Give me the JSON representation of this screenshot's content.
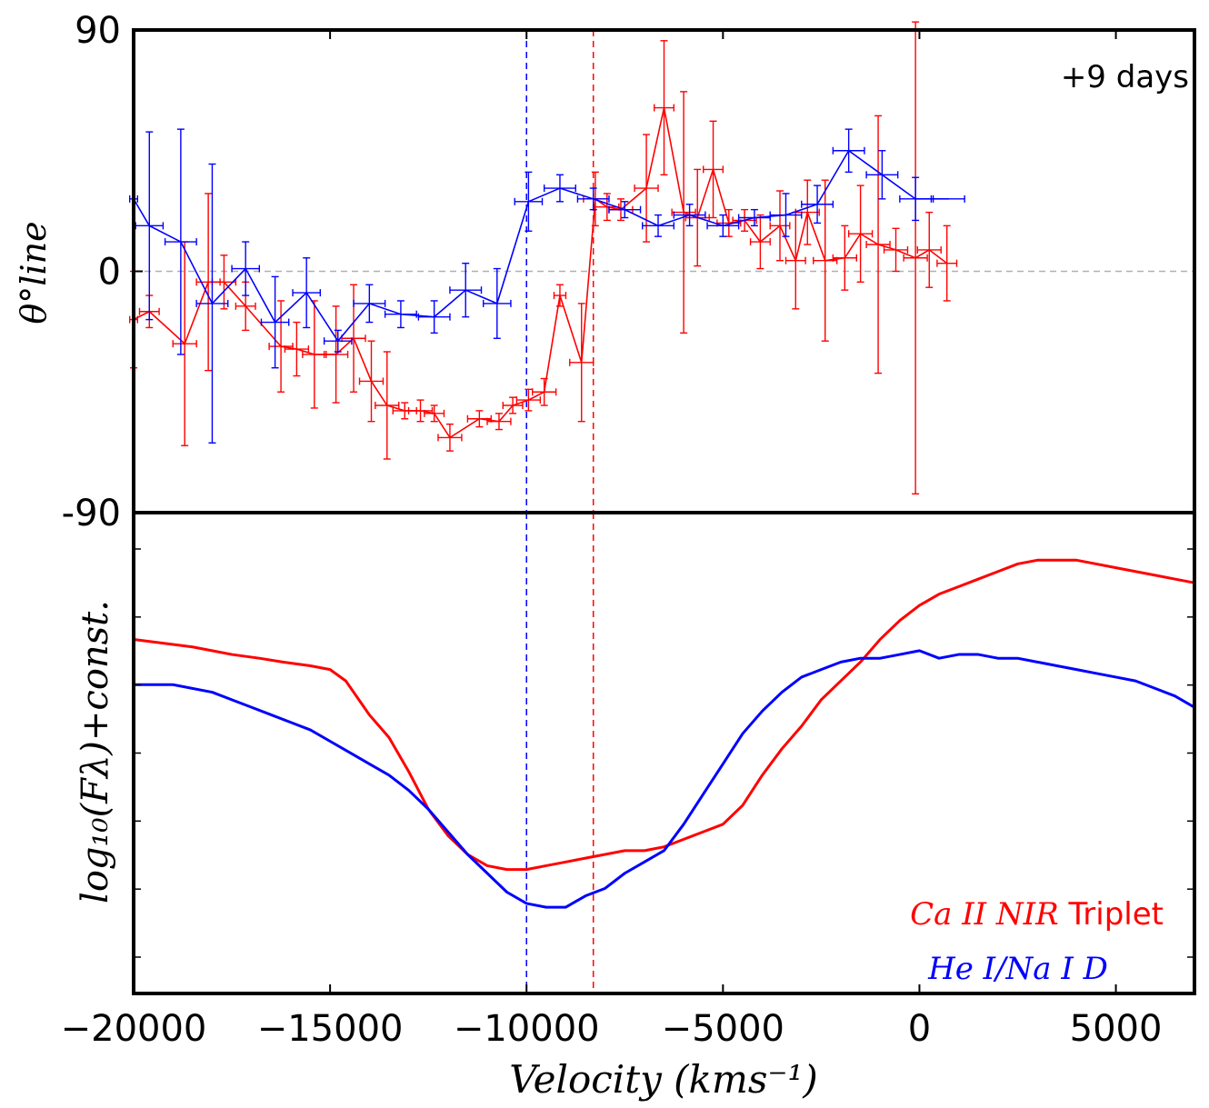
{
  "chart_data": [
    {
      "type": "line",
      "panel": "top",
      "title": "",
      "xlabel": "",
      "ylabel": "θ°line",
      "annotation": "+9 days",
      "xlim": [
        -20000,
        7000
      ],
      "ylim": [
        -90,
        90
      ],
      "yticks": [
        {
          "value": 90,
          "label": "90"
        },
        {
          "value": 0,
          "label": "0"
        },
        {
          "value": -90,
          "label": "-90"
        }
      ],
      "reference_lines": [
        {
          "axis": "y",
          "value": 0,
          "color": "#b0b0b0",
          "style": "dashed"
        },
        {
          "axis": "x",
          "value": -10000,
          "color": "#0000ff",
          "style": "dashed"
        },
        {
          "axis": "x",
          "value": -8300,
          "color": "#ff0000",
          "style": "dashed"
        }
      ],
      "series": [
        {
          "name": "Ca II NIR Triplet",
          "color": "#ff0000",
          "points": [
            {
              "x": -20000,
              "y": -18,
              "xerr": 100,
              "yerr": 18
            },
            {
              "x": -19600,
              "y": -15,
              "xerr": 250,
              "yerr": 6
            },
            {
              "x": -18700,
              "y": -27,
              "xerr": 300,
              "yerr": 38
            },
            {
              "x": -18100,
              "y": -4,
              "xerr": 300,
              "yerr": 33
            },
            {
              "x": -17700,
              "y": -4,
              "xerr": 300,
              "yerr": 10
            },
            {
              "x": -17150,
              "y": -13,
              "xerr": 250,
              "yerr": 9
            },
            {
              "x": -16250,
              "y": -28,
              "xerr": 300,
              "yerr": 17
            },
            {
              "x": -15850,
              "y": -29,
              "xerr": 300,
              "yerr": 10
            },
            {
              "x": -15400,
              "y": -31,
              "xerr": 300,
              "yerr": 20
            },
            {
              "x": -14850,
              "y": -31,
              "xerr": 300,
              "yerr": 18
            },
            {
              "x": -14400,
              "y": -25,
              "xerr": 300,
              "yerr": 20
            },
            {
              "x": -13950,
              "y": -41,
              "xerr": 300,
              "yerr": 15
            },
            {
              "x": -13550,
              "y": -50,
              "xerr": 300,
              "yerr": 20
            },
            {
              "x": -13100,
              "y": -52,
              "xerr": 300,
              "yerr": 3
            },
            {
              "x": -12700,
              "y": -52,
              "xerr": 300,
              "yerr": 4
            },
            {
              "x": -12350,
              "y": -53,
              "xerr": 250,
              "yerr": 3
            },
            {
              "x": -11950,
              "y": -62,
              "xerr": 300,
              "yerr": 5
            },
            {
              "x": -11200,
              "y": -55,
              "xerr": 300,
              "yerr": 3
            },
            {
              "x": -10700,
              "y": -56,
              "xerr": 300,
              "yerr": 3
            },
            {
              "x": -10350,
              "y": -50,
              "xerr": 250,
              "yerr": 3
            },
            {
              "x": -9950,
              "y": -48,
              "xerr": 300,
              "yerr": 4
            },
            {
              "x": -9550,
              "y": -45,
              "xerr": 300,
              "yerr": 5
            },
            {
              "x": -9150,
              "y": -9,
              "xerr": 150,
              "yerr": 4
            },
            {
              "x": -8600,
              "y": -34,
              "xerr": 300,
              "yerr": 22
            },
            {
              "x": -8250,
              "y": 27,
              "xerr": 300,
              "yerr": 10
            },
            {
              "x": -7950,
              "y": 24,
              "xerr": 300,
              "yerr": 5
            },
            {
              "x": -7600,
              "y": 23,
              "xerr": 300,
              "yerr": 4
            },
            {
              "x": -6950,
              "y": 31,
              "xerr": 300,
              "yerr": 20
            },
            {
              "x": -6500,
              "y": 61,
              "xerr": 250,
              "yerr": 25
            },
            {
              "x": -6000,
              "y": 22,
              "xerr": 300,
              "yerr": 45
            },
            {
              "x": -5650,
              "y": 20,
              "xerr": 300,
              "yerr": 18
            },
            {
              "x": -5250,
              "y": 38,
              "xerr": 250,
              "yerr": 18
            },
            {
              "x": -4850,
              "y": 18,
              "xerr": 300,
              "yerr": 5
            },
            {
              "x": -4450,
              "y": 19,
              "xerr": 300,
              "yerr": 4
            },
            {
              "x": -4050,
              "y": 11,
              "xerr": 250,
              "yerr": 10
            },
            {
              "x": -3550,
              "y": 17,
              "xerr": 250,
              "yerr": 13
            },
            {
              "x": -3150,
              "y": 4,
              "xerr": 250,
              "yerr": 18
            },
            {
              "x": -2850,
              "y": 22,
              "xerr": 300,
              "yerr": 12
            },
            {
              "x": -2400,
              "y": 4,
              "xerr": 300,
              "yerr": 30
            },
            {
              "x": -1900,
              "y": 5,
              "xerr": 300,
              "yerr": 12
            },
            {
              "x": -1500,
              "y": 14,
              "xerr": 300,
              "yerr": 18
            },
            {
              "x": -1050,
              "y": 10,
              "xerr": 300,
              "yerr": 48
            },
            {
              "x": -600,
              "y": 8,
              "xerr": 300,
              "yerr": 8
            },
            {
              "x": -100,
              "y": 5,
              "xerr": 300,
              "yerr": 88
            },
            {
              "x": 250,
              "y": 8,
              "xerr": 300,
              "yerr": 14
            },
            {
              "x": 700,
              "y": 3,
              "xerr": 250,
              "yerr": 14
            }
          ]
        },
        {
          "name": "He I/Na I D",
          "color": "#0000ff",
          "points": [
            {
              "x": -20000,
              "y": 27,
              "xerr": 100,
              "yerr": 0
            },
            {
              "x": -19600,
              "y": 17,
              "xerr": 350,
              "yerr": 35
            },
            {
              "x": -18800,
              "y": 11,
              "xerr": 400,
              "yerr": 42
            },
            {
              "x": -18000,
              "y": -12,
              "xerr": 400,
              "yerr": 52
            },
            {
              "x": -17150,
              "y": 1,
              "xerr": 350,
              "yerr": 10
            },
            {
              "x": -16400,
              "y": -19,
              "xerr": 350,
              "yerr": 17
            },
            {
              "x": -15600,
              "y": -8,
              "xerr": 350,
              "yerr": 13
            },
            {
              "x": -14800,
              "y": -26,
              "xerr": 350,
              "yerr": 4
            },
            {
              "x": -14000,
              "y": -12,
              "xerr": 400,
              "yerr": 7
            },
            {
              "x": -13200,
              "y": -16,
              "xerr": 400,
              "yerr": 5
            },
            {
              "x": -12350,
              "y": -17,
              "xerr": 400,
              "yerr": 6
            },
            {
              "x": -11550,
              "y": -7,
              "xerr": 400,
              "yerr": 10
            },
            {
              "x": -10750,
              "y": -12,
              "xerr": 350,
              "yerr": 13
            },
            {
              "x": -9950,
              "y": 26,
              "xerr": 350,
              "yerr": 11
            },
            {
              "x": -9150,
              "y": 31,
              "xerr": 400,
              "yerr": 5
            },
            {
              "x": -8300,
              "y": 27,
              "xerr": 400,
              "yerr": 4
            },
            {
              "x": -7500,
              "y": 23,
              "xerr": 400,
              "yerr": 3
            },
            {
              "x": -6650,
              "y": 17,
              "xerr": 400,
              "yerr": 4
            },
            {
              "x": -5850,
              "y": 21,
              "xerr": 400,
              "yerr": 4
            },
            {
              "x": -5000,
              "y": 17,
              "xerr": 400,
              "yerr": 4
            },
            {
              "x": -4200,
              "y": 20,
              "xerr": 400,
              "yerr": 3
            },
            {
              "x": -3400,
              "y": 21,
              "xerr": 400,
              "yerr": 8
            },
            {
              "x": -2600,
              "y": 25,
              "xerr": 400,
              "yerr": 7
            },
            {
              "x": -1800,
              "y": 45,
              "xerr": 400,
              "yerr": 8
            },
            {
              "x": -950,
              "y": 36,
              "xerr": 400,
              "yerr": 9
            },
            {
              "x": -100,
              "y": 27,
              "xerr": 400,
              "yerr": 8
            },
            {
              "x": 750,
              "y": 27,
              "xerr": 400,
              "yerr": 0
            }
          ]
        }
      ]
    },
    {
      "type": "line",
      "panel": "bottom",
      "title": "",
      "xlabel": "Velocity (kms⁻¹)",
      "ylabel": "log₁₀(Fλ)+const.",
      "xlim": [
        -20000,
        7000
      ],
      "ylim": [
        0,
        1
      ],
      "xticks": [
        {
          "value": -20000,
          "label": "−20000"
        },
        {
          "value": -15000,
          "label": "−15000"
        },
        {
          "value": -10000,
          "label": "−10000"
        },
        {
          "value": -5000,
          "label": "−5000"
        },
        {
          "value": 0,
          "label": "0"
        },
        {
          "value": 5000,
          "label": "5000"
        }
      ],
      "reference_lines": [
        {
          "axis": "x",
          "value": -10000,
          "color": "#0000ff",
          "style": "dashed"
        },
        {
          "axis": "x",
          "value": -8300,
          "color": "#ff0000",
          "style": "dashed"
        }
      ],
      "legend": [
        {
          "label_math": "Ca II NIR",
          "label_text": "Triplet",
          "color": "#ff0000"
        },
        {
          "label_math": "He I/Na I D",
          "label_text": "",
          "color": "#0000ff"
        }
      ],
      "legend_position": "lower-right",
      "series": [
        {
          "name": "Ca II NIR Triplet",
          "color": "#ff0000",
          "x": [
            -20000,
            -18500,
            -17500,
            -16800,
            -16200,
            -15500,
            -15000,
            -14600,
            -14400,
            -14200,
            -14000,
            -13500,
            -13000,
            -12500,
            -12000,
            -11500,
            -11000,
            -10500,
            -10000,
            -9500,
            -9000,
            -8500,
            -8000,
            -7500,
            -7000,
            -6500,
            -6000,
            -5500,
            -5000,
            -4500,
            -4000,
            -3500,
            -3000,
            -2500,
            -2000,
            -1500,
            -1000,
            -500,
            0,
            500,
            1000,
            1500,
            2000,
            2500,
            3000,
            3500,
            4000,
            4500,
            5000,
            5500,
            6000,
            6500,
            7000
          ],
          "y": [
            0.77,
            0.75,
            0.73,
            0.72,
            0.71,
            0.7,
            0.69,
            0.66,
            0.63,
            0.6,
            0.57,
            0.51,
            0.42,
            0.32,
            0.25,
            0.2,
            0.17,
            0.16,
            0.16,
            0.17,
            0.18,
            0.19,
            0.2,
            0.21,
            0.21,
            0.22,
            0.24,
            0.26,
            0.28,
            0.33,
            0.41,
            0.48,
            0.54,
            0.61,
            0.66,
            0.71,
            0.77,
            0.82,
            0.86,
            0.89,
            0.91,
            0.93,
            0.95,
            0.97,
            0.98,
            0.98,
            0.98,
            0.97,
            0.96,
            0.95,
            0.94,
            0.93,
            0.92
          ]
        },
        {
          "name": "He I/Na I D",
          "color": "#0000ff",
          "x": [
            -20000,
            -19000,
            -18000,
            -17500,
            -17000,
            -16500,
            -16000,
            -15500,
            -15000,
            -14500,
            -14000,
            -13500,
            -13000,
            -12500,
            -12000,
            -11500,
            -11000,
            -10500,
            -10000,
            -9500,
            -9000,
            -8500,
            -8000,
            -7500,
            -7000,
            -6500,
            -6000,
            -5500,
            -5000,
            -4500,
            -4000,
            -3500,
            -3000,
            -2500,
            -2000,
            -1500,
            -1000,
            -500,
            0,
            500,
            1000,
            1500,
            2000,
            2500,
            3000,
            3500,
            4000,
            4500,
            5000,
            5500,
            6000,
            6500,
            7000
          ],
          "y": [
            0.65,
            0.65,
            0.63,
            0.61,
            0.59,
            0.57,
            0.55,
            0.53,
            0.5,
            0.47,
            0.44,
            0.41,
            0.37,
            0.32,
            0.26,
            0.2,
            0.15,
            0.1,
            0.07,
            0.06,
            0.06,
            0.09,
            0.11,
            0.15,
            0.18,
            0.21,
            0.28,
            0.36,
            0.44,
            0.52,
            0.58,
            0.63,
            0.67,
            0.69,
            0.71,
            0.72,
            0.72,
            0.73,
            0.74,
            0.72,
            0.73,
            0.73,
            0.72,
            0.72,
            0.71,
            0.7,
            0.69,
            0.68,
            0.67,
            0.66,
            0.64,
            0.62,
            0.59
          ]
        }
      ]
    }
  ]
}
